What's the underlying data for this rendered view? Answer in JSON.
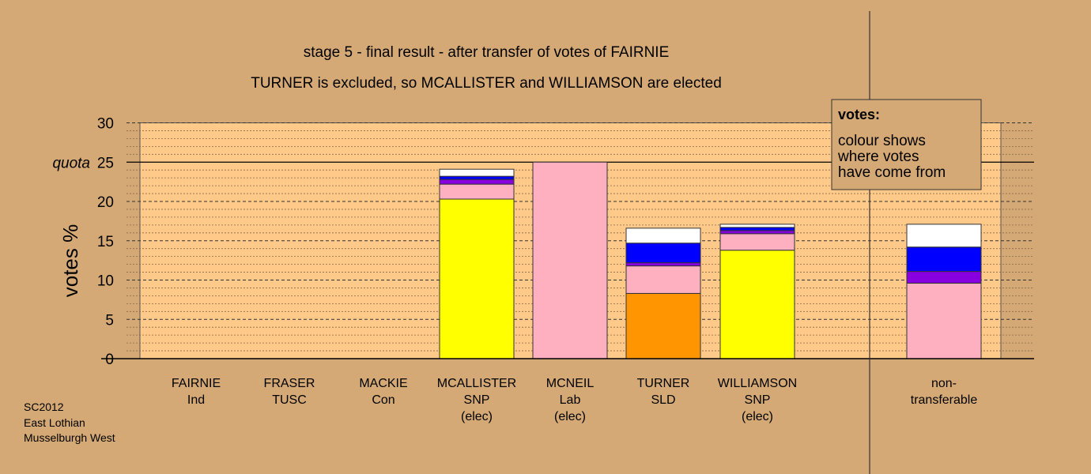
{
  "chart_data": {
    "type": "bar",
    "stacked": true,
    "title": "stage 5 - final result - after transfer of votes of FAIRNIE",
    "subtitle": "TURNER is excluded, so MCALLISTER and WILLIAMSON are elected",
    "ylabel": "votes %",
    "ylim": [
      0,
      30
    ],
    "yticks": [
      "0",
      "5",
      "10",
      "15",
      "20",
      "25",
      "30"
    ],
    "quota": {
      "label": "quota",
      "value": 25
    },
    "grid": true,
    "categories": [
      {
        "lines": [
          "FAIRNIE",
          "Ind"
        ]
      },
      {
        "lines": [
          "FRASER",
          "TUSC"
        ]
      },
      {
        "lines": [
          "MACKIE",
          "Con"
        ]
      },
      {
        "lines": [
          "MCALLISTER",
          "SNP",
          "(elec)"
        ]
      },
      {
        "lines": [
          "MCNEIL",
          "Lab",
          "(elec)"
        ]
      },
      {
        "lines": [
          "TURNER",
          "SLD"
        ]
      },
      {
        "lines": [
          "WILLIAMSON",
          "SNP",
          "(elec)"
        ]
      },
      {
        "lines": [
          "non-",
          "transferable"
        ]
      }
    ],
    "segment_colors": [
      "#ffff00",
      "#ffb0c0",
      "#8800e0",
      "#0000ff",
      "#ffffff",
      "#ff9500"
    ],
    "stacks": [
      [],
      [],
      [],
      [
        {
          "value": 20.3,
          "color": "#ffff00"
        },
        {
          "value": 1.9,
          "color": "#ffb0c0"
        },
        {
          "value": 0.6,
          "color": "#8800e0"
        },
        {
          "value": 0.4,
          "color": "#0000ff"
        },
        {
          "value": 0.9,
          "color": "#ffffff"
        }
      ],
      [
        {
          "value": 25.0,
          "color": "#ffb0c0"
        }
      ],
      [
        {
          "value": 8.3,
          "color": "#ff9500"
        },
        {
          "value": 3.5,
          "color": "#ffb0c0"
        },
        {
          "value": 0.4,
          "color": "#8800e0"
        },
        {
          "value": 2.5,
          "color": "#0000ff"
        },
        {
          "value": 1.9,
          "color": "#ffffff"
        }
      ],
      [
        {
          "value": 13.8,
          "color": "#ffff00"
        },
        {
          "value": 2.1,
          "color": "#ffb0c0"
        },
        {
          "value": 0.4,
          "color": "#8800e0"
        },
        {
          "value": 0.4,
          "color": "#0000ff"
        },
        {
          "value": 0.4,
          "color": "#ffffff"
        }
      ],
      [
        {
          "value": 9.6,
          "color": "#ffb0c0"
        },
        {
          "value": 1.5,
          "color": "#8800e0"
        },
        {
          "value": 3.1,
          "color": "#0000ff"
        },
        {
          "value": 2.9,
          "color": "#ffffff"
        }
      ]
    ],
    "legend": {
      "title": "votes:",
      "lines": [
        "colour shows",
        "where votes",
        "have come from"
      ]
    },
    "footer": [
      "SC2012",
      "East Lothian",
      "Musselburgh West"
    ]
  }
}
